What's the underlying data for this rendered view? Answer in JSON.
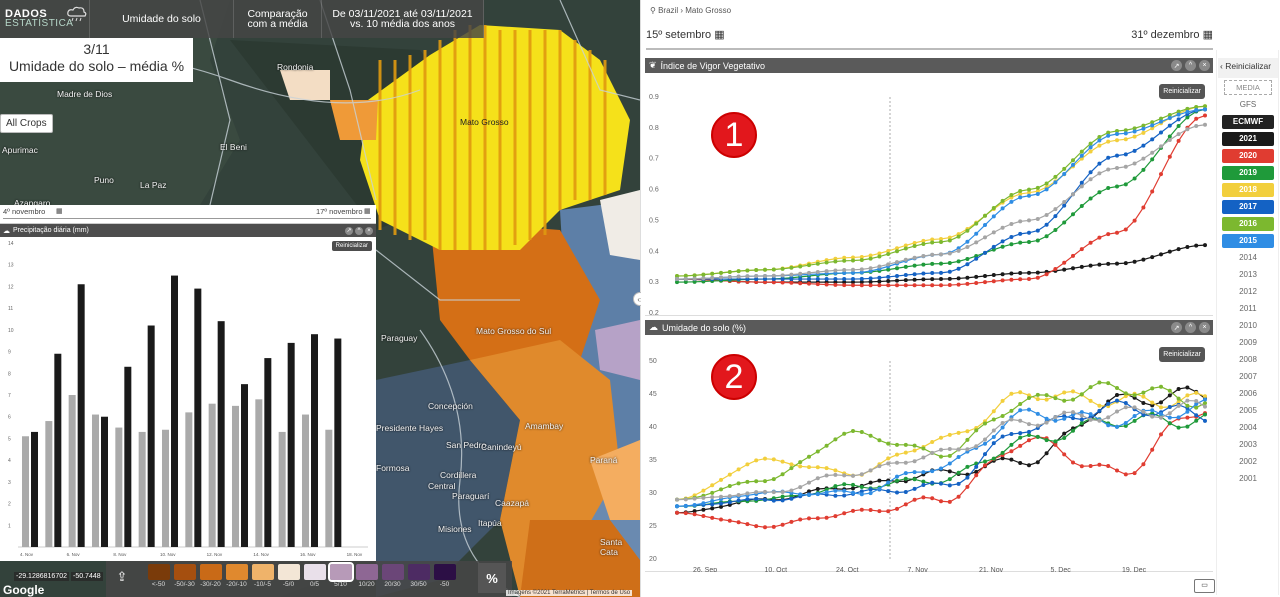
{
  "topbar": {
    "brand_title": "DADOS",
    "brand_sub": "ESTATÍSTICA",
    "variable": "Umidade do solo",
    "comparison": "Comparação com a média",
    "period": "De 03/11/2021 até 03/11/2021 vs. 10 média dos anos"
  },
  "map": {
    "date_label": "3/11",
    "layer_label": "Umidade do solo – média %",
    "crop_filter": "All Crops",
    "slider_start": "4º novembro",
    "slider_end": "17º novembro",
    "place_labels": [
      "Madre de Dios",
      "Rondonia",
      "El Beni",
      "Puno",
      "La Paz",
      "Azangaro",
      "Apurimac",
      "Mato Grosso",
      "Paraguay",
      "Mato Grosso do Sul",
      "Concepción",
      "Presidente Hayes",
      "San Pedro",
      "Canindeyú",
      "Amambay",
      "Cordillera",
      "Central",
      "Paraguarí",
      "Caazapá",
      "Misiones",
      "Itapúa",
      "Paraná",
      "Santa Cata",
      "Formosa"
    ],
    "coords": [
      "-29.1286816702",
      "-50.7448"
    ],
    "google": "Google",
    "attribution": "Imagens ©2021 TerraMetrics | Termos de Uso"
  },
  "legend": {
    "unit": "%",
    "items": [
      {
        "label": "<-50",
        "color": "#7a3b0a"
      },
      {
        "label": "-50/-30",
        "color": "#a54f0f"
      },
      {
        "label": "-30/-20",
        "color": "#c96a17"
      },
      {
        "label": "-20/-10",
        "color": "#e0892e"
      },
      {
        "label": "-10/-5",
        "color": "#efb36a"
      },
      {
        "label": "-5/0",
        "color": "#f3e6d6"
      },
      {
        "label": "0/5",
        "color": "#e9e0ea"
      },
      {
        "label": "5/10",
        "color": "#b79ab8"
      },
      {
        "label": "10/20",
        "color": "#8e6794"
      },
      {
        "label": "20/30",
        "color": "#6b4678"
      },
      {
        "label": "30/50",
        "color": "#4d2b63"
      },
      {
        "label": "-50",
        "color": "#2c0f45"
      }
    ],
    "selected": "5/10"
  },
  "precip": {
    "title": "Precipitação diária (mm)",
    "reset": "Reinicializar"
  },
  "breadcrumb": {
    "country": "Brazil",
    "region": "Mato Grosso"
  },
  "range": {
    "start": "15º setembro",
    "end": "31º dezembro"
  },
  "ndvi": {
    "title": "Índice de Vigor Vegetativo",
    "reset": "Reinicializar",
    "badge": "1"
  },
  "soil": {
    "title": "Umidade do solo (%)",
    "reset": "Reinicializar",
    "badge": "2"
  },
  "years": {
    "reset": "Reinicializar",
    "media": "MEDIA",
    "gfs": "GFS",
    "list": [
      {
        "label": "ECMWF",
        "color": "#222222",
        "on": true
      },
      {
        "label": "2021",
        "color": "#1a1a1a",
        "on": true
      },
      {
        "label": "2020",
        "color": "#e03c31",
        "on": true
      },
      {
        "label": "2019",
        "color": "#1f9a3a",
        "on": true
      },
      {
        "label": "2018",
        "color": "#f2cf3c",
        "on": true
      },
      {
        "label": "2017",
        "color": "#1462c4",
        "on": true
      },
      {
        "label": "2016",
        "color": "#7cb82f",
        "on": true
      },
      {
        "label": "2015",
        "color": "#2f8de4",
        "on": true
      },
      {
        "label": "2014",
        "on": false
      },
      {
        "label": "2013",
        "on": false
      },
      {
        "label": "2012",
        "on": false
      },
      {
        "label": "2011",
        "on": false
      },
      {
        "label": "2010",
        "on": false
      },
      {
        "label": "2009",
        "on": false
      },
      {
        "label": "2008",
        "on": false
      },
      {
        "label": "2007",
        "on": false
      },
      {
        "label": "2006",
        "on": false
      },
      {
        "label": "2005",
        "on": false
      },
      {
        "label": "2004",
        "on": false
      },
      {
        "label": "2003",
        "on": false
      },
      {
        "label": "2002",
        "on": false
      },
      {
        "label": "2001",
        "on": false
      }
    ]
  },
  "chart_data": [
    {
      "type": "bar",
      "title": "Precipitação diária (mm)",
      "yticks": [
        1,
        2,
        3,
        4,
        5,
        6,
        7,
        8,
        9,
        10,
        11,
        12,
        13,
        14
      ],
      "ylim": [
        0,
        14
      ],
      "categories": [
        "4. Nov",
        "",
        "6. Nov",
        "",
        "8. Nov",
        "",
        "10. Nov",
        "",
        "12. Nov",
        "",
        "14. Nov",
        "",
        "16. Nov",
        "",
        "18. Nov"
      ],
      "xtick_labels": [
        "4. Nov",
        "6. Nov",
        "8. Nov",
        "10. Nov",
        "12. Nov",
        "14. Nov",
        "16. Nov",
        "18. Nov"
      ],
      "series": [
        {
          "color": "#aaaaaa",
          "values": [
            5.1,
            5.8,
            7.0,
            6.1,
            5.5,
            5.3,
            5.4,
            6.2,
            6.6,
            6.5,
            6.8,
            5.3,
            6.1,
            5.4,
            0
          ]
        },
        {
          "color": "#1a1a1a",
          "values": [
            5.3,
            8.9,
            12.1,
            6.0,
            8.3,
            10.2,
            12.5,
            11.9,
            10.4,
            7.5,
            8.7,
            9.4,
            9.8,
            9.6,
            0
          ]
        }
      ]
    },
    {
      "type": "line",
      "title": "Índice de Vigor Vegetativo",
      "ylim": [
        0.2,
        0.9
      ],
      "yticks": [
        0.2,
        0.3,
        0.4,
        0.5,
        0.6,
        0.7,
        0.8,
        0.9
      ],
      "xtick_labels": [
        "26. Sep",
        "10. Oct",
        "24. Oct",
        "7. Nov",
        "21. Nov",
        "5. Dec",
        "19. Dec"
      ],
      "series": [
        {
          "name": "2021",
          "color": "#1a1a1a",
          "values": [
            0.31,
            0.3,
            0.3,
            0.31,
            0.33,
            0.36,
            0.42
          ]
        },
        {
          "name": "2020",
          "color": "#e03c31",
          "values": [
            0.31,
            0.3,
            0.29,
            0.29,
            0.31,
            0.46,
            0.84
          ]
        },
        {
          "name": "2019",
          "color": "#1f9a3a",
          "values": [
            0.3,
            0.31,
            0.33,
            0.36,
            0.43,
            0.61,
            0.86
          ]
        },
        {
          "name": "2018",
          "color": "#f2cf3c",
          "values": [
            0.32,
            0.34,
            0.38,
            0.44,
            0.59,
            0.76,
            0.87
          ]
        },
        {
          "name": "2017",
          "color": "#1462c4",
          "values": [
            0.31,
            0.31,
            0.31,
            0.33,
            0.46,
            0.71,
            0.86
          ]
        },
        {
          "name": "2016",
          "color": "#7cb82f",
          "values": [
            0.32,
            0.34,
            0.37,
            0.43,
            0.6,
            0.79,
            0.87
          ]
        },
        {
          "name": "2015",
          "color": "#2f8de4",
          "values": [
            0.31,
            0.32,
            0.33,
            0.39,
            0.58,
            0.78,
            0.86
          ]
        },
        {
          "name": "MEDIA",
          "color": "#a5a5a5",
          "values": [
            0.31,
            0.32,
            0.34,
            0.39,
            0.5,
            0.67,
            0.81
          ]
        }
      ]
    },
    {
      "type": "line",
      "title": "Umidade do solo (%)",
      "ylim": [
        20,
        50
      ],
      "yticks": [
        20,
        25,
        30,
        35,
        40,
        45,
        50
      ],
      "xtick_labels": [
        "26. Sep",
        "10. Oct",
        "24. Oct",
        "7. Nov",
        "21. Nov",
        "5. Dec",
        "19. Dec"
      ],
      "series": [
        {
          "name": "2021",
          "color": "#1a1a1a",
          "values": [
            27,
            29,
            31,
            33,
            35,
            44,
            45
          ]
        },
        {
          "name": "2020",
          "color": "#e03c31",
          "values": [
            27,
            25,
            27,
            29,
            38,
            33,
            43
          ]
        },
        {
          "name": "2019",
          "color": "#1f9a3a",
          "values": [
            28,
            29,
            31,
            32,
            38,
            41,
            41
          ]
        },
        {
          "name": "2018",
          "color": "#f2cf3c",
          "values": [
            29,
            35,
            33,
            38,
            45,
            44,
            44
          ]
        },
        {
          "name": "2017",
          "color": "#1462c4",
          "values": [
            28,
            29,
            30,
            31,
            40,
            43,
            42
          ]
        },
        {
          "name": "2016",
          "color": "#7cb82f",
          "values": [
            29,
            32,
            39,
            36,
            44,
            46,
            44
          ]
        },
        {
          "name": "2015",
          "color": "#2f8de4",
          "values": [
            28,
            30,
            30,
            34,
            42,
            41,
            43
          ]
        },
        {
          "name": "MEDIA",
          "color": "#a5a5a5",
          "values": [
            29,
            30,
            33,
            36,
            41,
            42,
            43
          ]
        }
      ]
    }
  ]
}
